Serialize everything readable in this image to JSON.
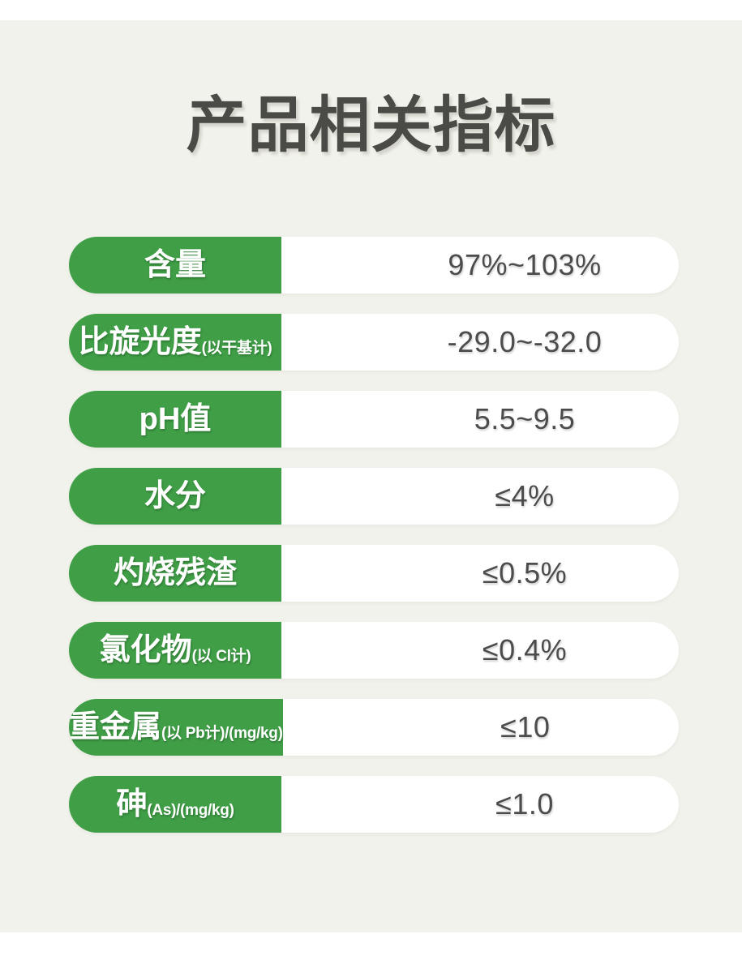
{
  "page": {
    "title": "产品相关指标",
    "colors": {
      "background_strip": "#ffffff",
      "sheet_background": "#f2f2ec",
      "accent_green": "#3f9e46",
      "title_text": "#4a4a46",
      "value_text": "#4c4c4c",
      "label_text": "#ffffff",
      "row_background": "#ffffff"
    }
  },
  "table": {
    "rows": [
      {
        "label": "含量",
        "note": "",
        "value": "97%~103%"
      },
      {
        "label": "比旋光度",
        "note": "(以干基计)",
        "value": "-29.0~-32.0"
      },
      {
        "label": "pH值",
        "note": "",
        "value": "5.5~9.5"
      },
      {
        "label": "水分",
        "note": "",
        "value": "≤4%"
      },
      {
        "label": "灼烧残渣",
        "note": "",
        "value": "≤0.5%"
      },
      {
        "label": "氯化物",
        "note": "(以 Cl计)",
        "value": "≤0.4%"
      },
      {
        "label": "重金属",
        "note": "(以 Pb计)/(mg/kg)",
        "value": "≤10"
      },
      {
        "label": "砷",
        "note": "(As)/(mg/kg)",
        "value": "≤1.0"
      }
    ]
  }
}
